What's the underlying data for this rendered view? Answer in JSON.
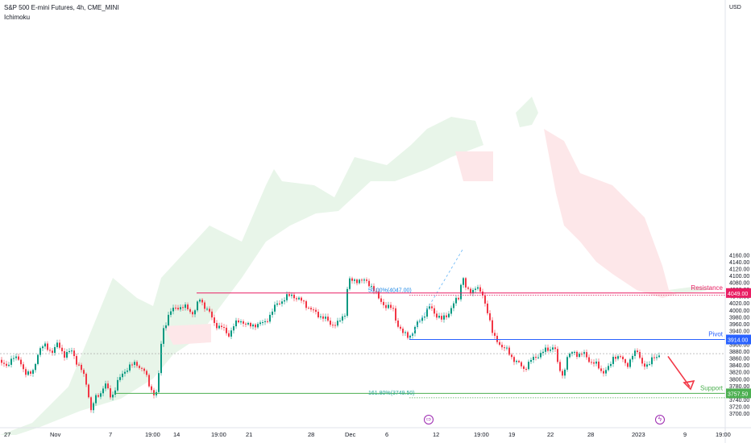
{
  "header": {
    "title": "S&P 500 E-mini Futures, 4h, CME_MINI",
    "indicator": "Ichimoku",
    "currency": "USD"
  },
  "colors": {
    "up": "#089981",
    "down": "#f23645",
    "resistance": "#e91e63",
    "pivot": "#2962ff",
    "support": "#4caf50",
    "arrow": "#f23645"
  },
  "events": [
    {
      "icon": "dividend-icon",
      "glyph": "⇨"
    },
    {
      "icon": "lightning-icon",
      "glyph": "ϟ"
    }
  ],
  "chart_data": {
    "type": "candlestick",
    "ylim": [
      3690,
      4180
    ],
    "y_ticks": [
      "4160.00",
      "4140.00",
      "4120.00",
      "4100.00",
      "4080.00",
      "4060.00",
      "4040.00",
      "4020.00",
      "4000.00",
      "3980.00",
      "3960.00",
      "3940.00",
      "3920.00",
      "3900.00",
      "3880.00",
      "3860.00",
      "3840.00",
      "3820.00",
      "3800.00",
      "3780.00",
      "3760.00",
      "3740.00",
      "3720.00",
      "3700.00"
    ],
    "x_labels": [
      "27",
      "Nov",
      "7",
      "19:00",
      "14",
      "19:00",
      "21",
      "28",
      "Dec",
      "6",
      "12",
      "19:00",
      "19",
      "22",
      "28",
      "2023",
      "9",
      "19:00"
    ],
    "levels": [
      {
        "name": "Resistance",
        "value": 4049.0,
        "label": "4049.00"
      },
      {
        "name": "Pivot",
        "value": 3914.0,
        "label": "3914.00"
      },
      {
        "name": "Support",
        "value": 3757.5,
        "label": "3757.50"
      }
    ],
    "fib_labels": [
      {
        "text": "50.00%(4047.00)",
        "value": 4047.0
      },
      {
        "text": "161.80%(3749.50)",
        "value": 3749.5
      }
    ],
    "price_path": [
      [
        0,
        3855
      ],
      [
        8,
        3830
      ],
      [
        16,
        3870
      ],
      [
        25,
        3845
      ],
      [
        32,
        3820
      ],
      [
        40,
        3810
      ],
      [
        48,
        3885
      ],
      [
        55,
        3895
      ],
      [
        65,
        3880
      ],
      [
        72,
        3900
      ],
      [
        80,
        3870
      ],
      [
        90,
        3880
      ],
      [
        95,
        3850
      ],
      [
        102,
        3820
      ],
      [
        108,
        3780
      ],
      [
        113,
        3710
      ],
      [
        118,
        3740
      ],
      [
        125,
        3760
      ],
      [
        130,
        3790
      ],
      [
        138,
        3740
      ],
      [
        145,
        3790
      ],
      [
        152,
        3810
      ],
      [
        160,
        3840
      ],
      [
        170,
        3840
      ],
      [
        178,
        3830
      ],
      [
        185,
        3780
      ],
      [
        190,
        3760
      ],
      [
        196,
        3760
      ],
      [
        198,
        3860
      ],
      [
        202,
        3940
      ],
      [
        210,
        3990
      ],
      [
        220,
        4010
      ],
      [
        232,
        4005
      ],
      [
        240,
        3990
      ],
      [
        248,
        4030
      ],
      [
        258,
        4000
      ],
      [
        266,
        3960
      ],
      [
        275,
        3950
      ],
      [
        283,
        3925
      ],
      [
        290,
        3955
      ],
      [
        300,
        3970
      ],
      [
        310,
        3950
      ],
      [
        318,
        3960
      ],
      [
        328,
        3960
      ],
      [
        336,
        3990
      ],
      [
        345,
        4020
      ],
      [
        355,
        4035
      ],
      [
        363,
        4045
      ],
      [
        370,
        4030
      ],
      [
        378,
        4020
      ],
      [
        386,
        4000
      ],
      [
        392,
        3990
      ],
      [
        400,
        3980
      ],
      [
        410,
        3960
      ],
      [
        420,
        3960
      ],
      [
        428,
        3990
      ],
      [
        432,
        4090
      ],
      [
        438,
        4080
      ],
      [
        446,
        4090
      ],
      [
        454,
        4080
      ],
      [
        462,
        4070
      ],
      [
        470,
        4030
      ],
      [
        480,
        4010
      ],
      [
        488,
        4000
      ],
      [
        493,
        3960
      ],
      [
        500,
        3930
      ],
      [
        508,
        3925
      ],
      [
        514,
        3940
      ],
      [
        520,
        3970
      ],
      [
        528,
        3990
      ],
      [
        534,
        4010
      ],
      [
        540,
        3990
      ],
      [
        548,
        3970
      ],
      [
        556,
        3990
      ],
      [
        564,
        4020
      ],
      [
        570,
        4040
      ],
      [
        574,
        4110
      ],
      [
        578,
        4060
      ],
      [
        584,
        4050
      ],
      [
        590,
        4070
      ],
      [
        596,
        4050
      ],
      [
        601,
        4030
      ],
      [
        606,
        3990
      ],
      [
        612,
        3920
      ],
      [
        618,
        3910
      ],
      [
        624,
        3890
      ],
      [
        630,
        3880
      ],
      [
        640,
        3850
      ],
      [
        650,
        3830
      ],
      [
        658,
        3850
      ],
      [
        668,
        3870
      ],
      [
        676,
        3880
      ],
      [
        684,
        3890
      ],
      [
        688,
        3900
      ],
      [
        692,
        3840
      ],
      [
        698,
        3810
      ],
      [
        704,
        3860
      ],
      [
        712,
        3880
      ],
      [
        718,
        3870
      ],
      [
        726,
        3870
      ],
      [
        733,
        3850
      ],
      [
        740,
        3840
      ],
      [
        748,
        3820
      ],
      [
        756,
        3830
      ],
      [
        762,
        3870
      ],
      [
        770,
        3860
      ],
      [
        778,
        3840
      ],
      [
        786,
        3870
      ],
      [
        792,
        3880
      ],
      [
        798,
        3840
      ],
      [
        804,
        3830
      ],
      [
        810,
        3870
      ],
      [
        818,
        3860
      ]
    ],
    "projection": {
      "from": [
        829,
        3865
      ],
      "to": [
        856,
        3777
      ]
    }
  }
}
